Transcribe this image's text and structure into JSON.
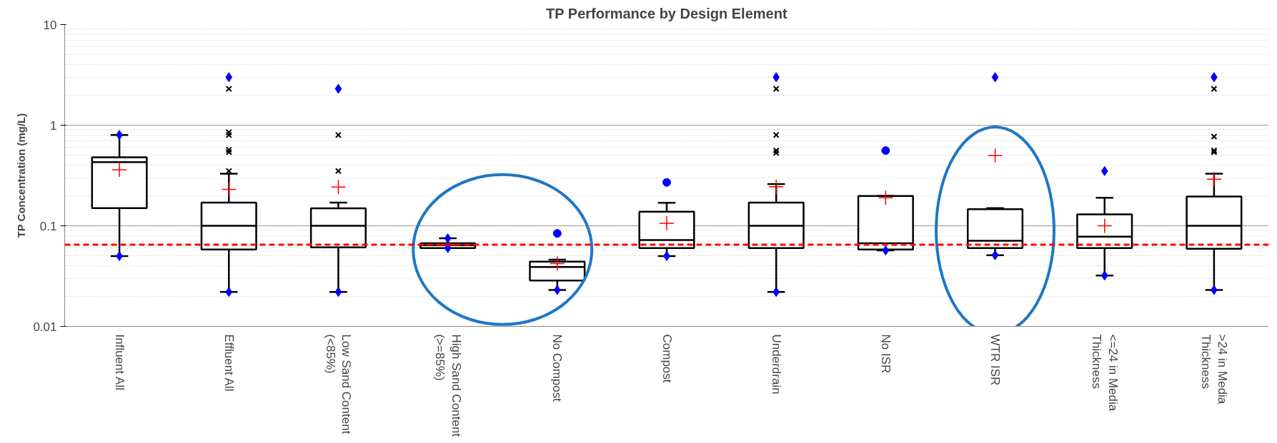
{
  "chart_data": {
    "type": "box",
    "title": "TP Performance by Design Element",
    "ylabel": "TP Concentration (mg/L)",
    "categories": [
      "Influent All",
      "Effluent All",
      "Low Sand Content (<85%)",
      "High Sand Content (>=85%)",
      "No Compost",
      "Compost",
      "Underdrain",
      "No ISR",
      "WTR ISR",
      "<=24 in Media Thickness",
      ">24 in Media Thickness"
    ],
    "log": "y",
    "ylim": [
      0.01,
      10
    ],
    "yticks": [
      0.01,
      0.1,
      1,
      10
    ],
    "grid": "y",
    "boxes": [
      {
        "low": 0.05,
        "q1": 0.15,
        "median": 0.43,
        "q3": 0.48,
        "high": 0.8,
        "mean": 0.36
      },
      {
        "low": 0.022,
        "q1": 0.058,
        "median": 0.1,
        "q3": 0.17,
        "high": 0.33,
        "mean": 0.23,
        "outliers": [
          0.35,
          0.54,
          0.57,
          0.8,
          0.85,
          2.3
        ]
      },
      {
        "low": 0.022,
        "q1": 0.061,
        "median": 0.1,
        "q3": 0.149,
        "high": 0.17,
        "mean": 0.243,
        "outliers": [
          0.35,
          0.8
        ]
      },
      {
        "low": 0.06,
        "q1": 0.06,
        "median": 0.064,
        "q3": 0.067,
        "high": 0.075,
        "mean": 0.064
      },
      {
        "low": 0.023,
        "q1": 0.0285,
        "median": 0.039,
        "q3": 0.044,
        "high": 0.046,
        "mean": 0.042
      },
      {
        "low": 0.05,
        "q1": 0.06,
        "median": 0.072,
        "q3": 0.138,
        "high": 0.169,
        "mean": 0.106
      },
      {
        "low": 0.022,
        "q1": 0.06,
        "median": 0.1,
        "q3": 0.17,
        "high": 0.26,
        "mean": 0.245,
        "outliers": [
          0.53,
          0.56,
          0.8,
          2.3
        ]
      },
      {
        "low": 0.057,
        "q1": 0.058,
        "median": 0.067,
        "q3": 0.198,
        "high": 0.198,
        "mean": 0.19
      },
      {
        "low": 0.051,
        "q1": 0.06,
        "median": 0.071,
        "q3": 0.146,
        "high": 0.15,
        "mean": 0.5
      },
      {
        "low": 0.032,
        "q1": 0.06,
        "median": 0.078,
        "q3": 0.13,
        "high": 0.19,
        "mean": 0.1
      },
      {
        "low": 0.023,
        "q1": 0.059,
        "median": 0.1,
        "q3": 0.195,
        "high": 0.33,
        "mean": 0.29,
        "outliers": [
          0.54,
          0.56,
          0.77,
          2.3
        ]
      }
    ],
    "series": [
      {
        "type": "scatter",
        "color": "#0000ff",
        "marker": "diamond",
        "x": [
          "Influent All",
          "Effluent All",
          "Low Sand Content (<85%)",
          "High Sand Content (>=85%)",
          "Underdrain",
          "WTR ISR",
          "<=24 in Media Thickness",
          ">24 in Media Thickness"
        ],
        "values": [
          0.8,
          3.0,
          2.3,
          0.075,
          3.0,
          3.0,
          0.35,
          3.0
        ]
      },
      {
        "type": "scatter",
        "color": "#0000ff",
        "marker": "diamond",
        "x": [
          "Influent All",
          "Effluent All",
          "Low Sand Content (<85%)",
          "High Sand Content (>=85%)",
          "No Compost",
          "Compost",
          "Underdrain",
          "No ISR",
          "WTR ISR",
          "<=24 in Media Thickness",
          ">24 in Media Thickness"
        ],
        "values": [
          0.05,
          0.022,
          0.022,
          0.06,
          0.023,
          0.05,
          0.022,
          0.057,
          0.051,
          0.032,
          0.023
        ]
      },
      {
        "type": "scatter",
        "color": "#0000ff",
        "marker": "circle",
        "x": [
          "No Compost",
          "Compost",
          "No ISR"
        ],
        "values": [
          0.084,
          0.27,
          0.56
        ]
      }
    ],
    "ref_lines": [
      {
        "axis": "y",
        "value": 0.065,
        "color": "#ff0000",
        "line_style": "dashed"
      }
    ]
  }
}
